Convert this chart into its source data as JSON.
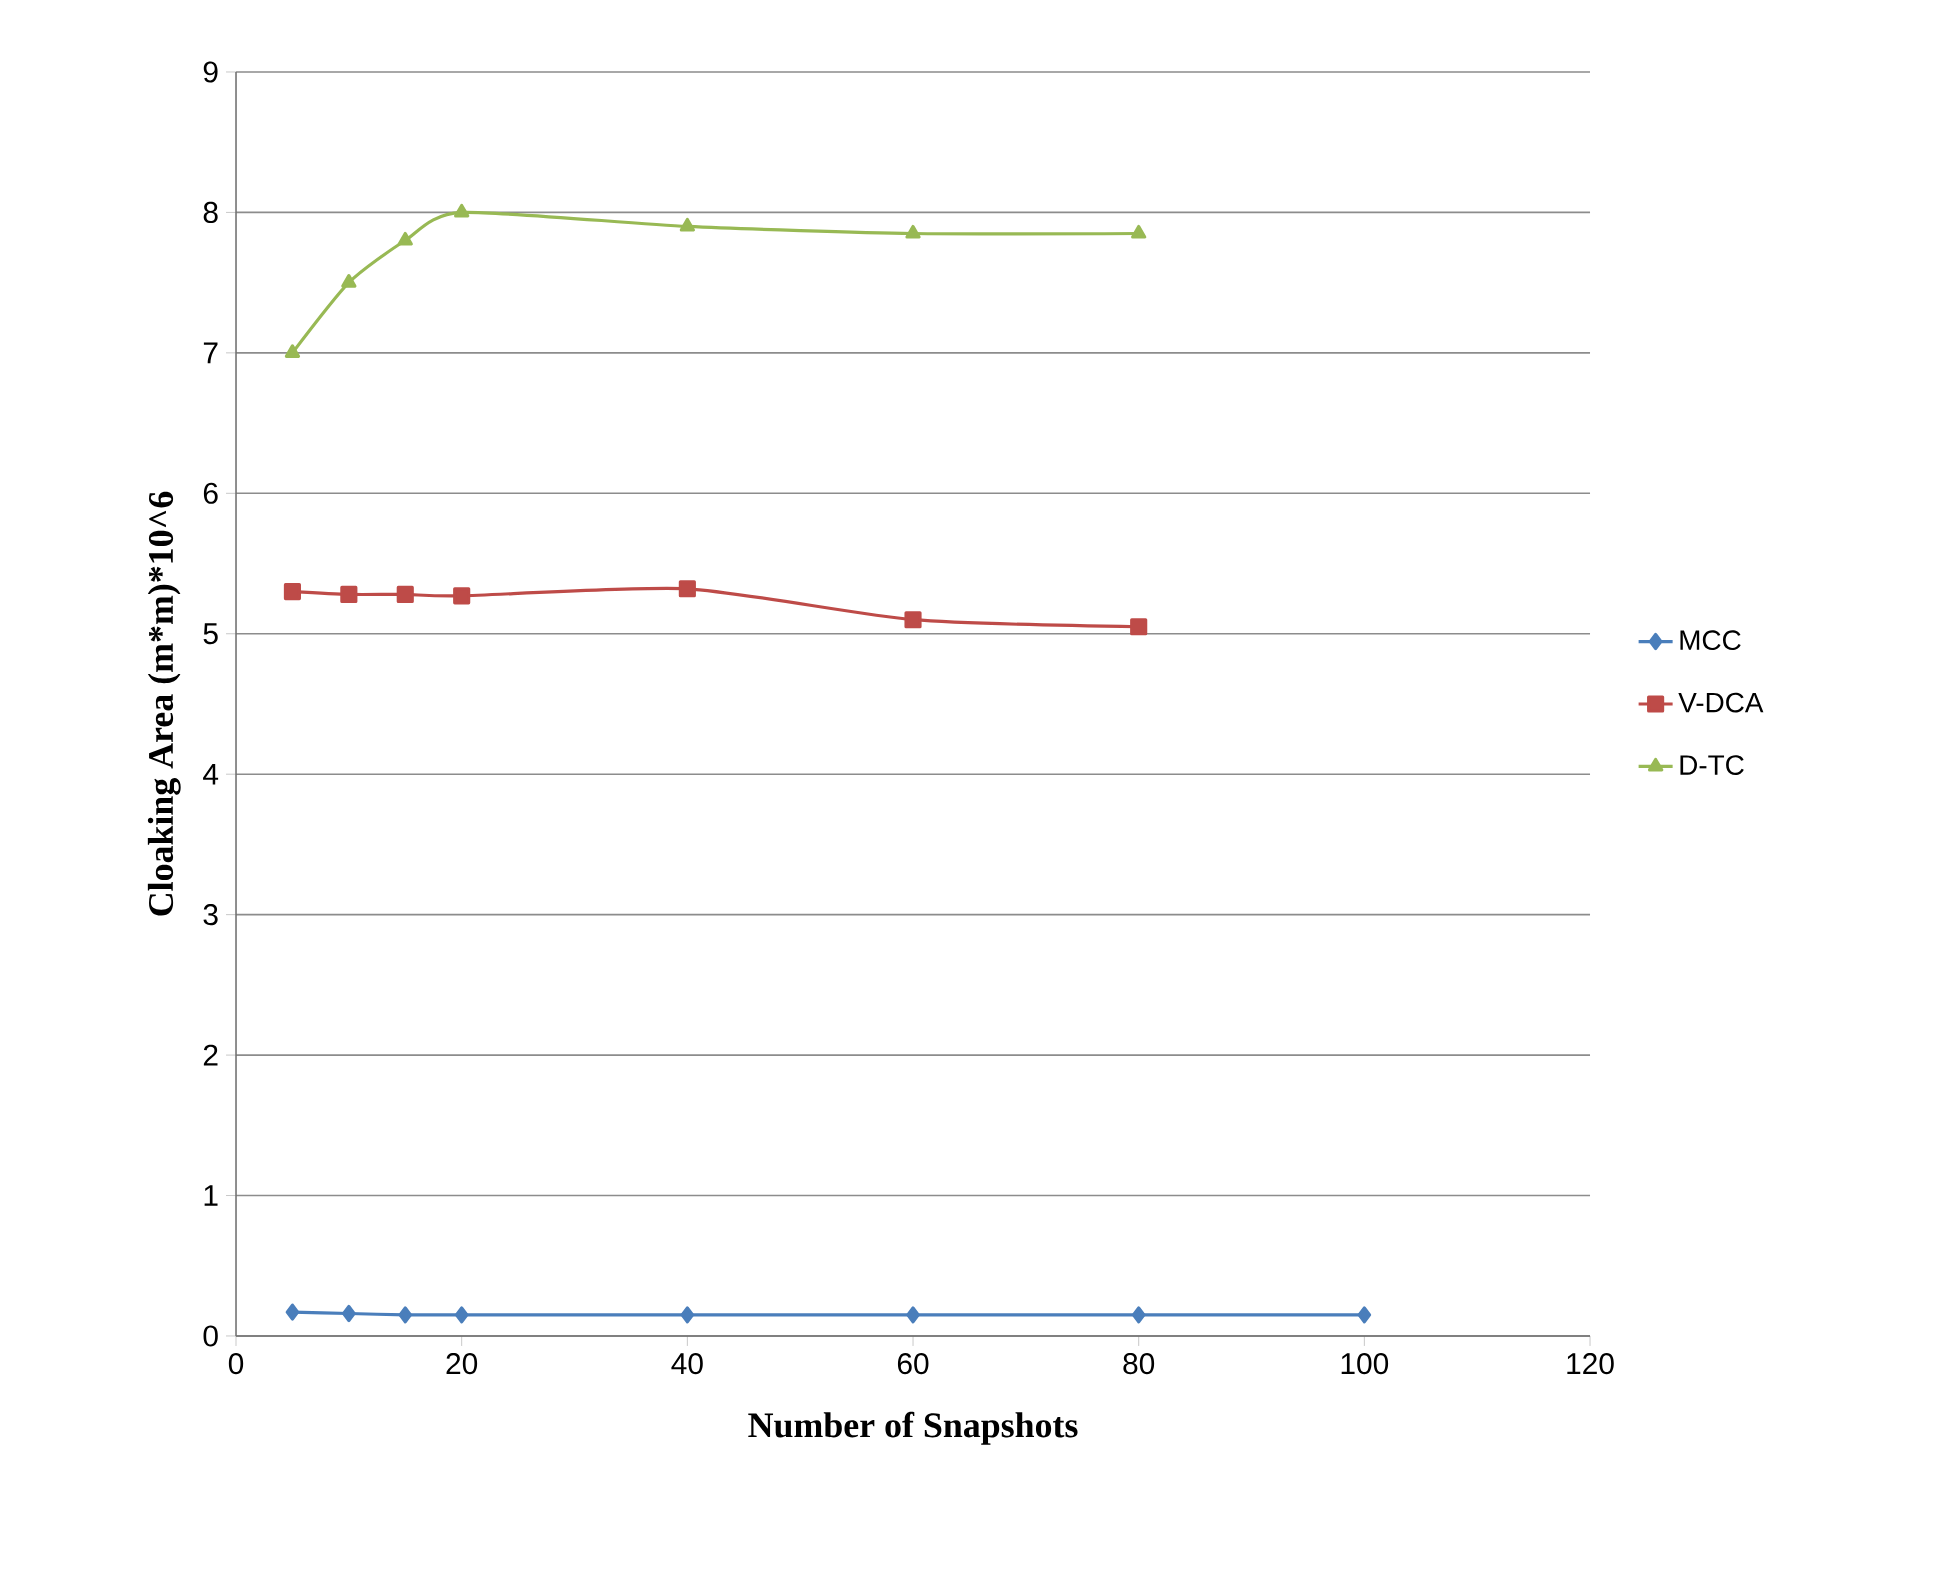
{
  "chart_data": {
    "type": "line",
    "xlabel": "Number of Snapshots",
    "ylabel": "Cloaking Area (m*m)*10^6",
    "xlim": [
      0,
      120
    ],
    "xticks": [
      0,
      20,
      40,
      60,
      80,
      100,
      120
    ],
    "ylim": [
      0,
      9
    ],
    "yticks": [
      0,
      1,
      2,
      3,
      4,
      5,
      6,
      7,
      8,
      9
    ],
    "grid": "y",
    "legend": "right",
    "line_style": "solid",
    "series": [
      {
        "name": "MCC",
        "color": "#4a7ebb",
        "marker": "diamond",
        "x": [
          5,
          10,
          15,
          20,
          40,
          60,
          80,
          100
        ],
        "values": [
          0.17,
          0.16,
          0.15,
          0.15,
          0.15,
          0.15,
          0.15,
          0.15
        ]
      },
      {
        "name": "V-DCA",
        "color": "#be4b48",
        "marker": "square",
        "x": [
          5,
          10,
          15,
          20,
          40,
          60,
          80
        ],
        "values": [
          5.3,
          5.28,
          5.28,
          5.27,
          5.32,
          5.1,
          5.05
        ]
      },
      {
        "name": "D-TC",
        "color": "#98b954",
        "marker": "triangle",
        "x": [
          5,
          10,
          15,
          20,
          40,
          60,
          80
        ],
        "values": [
          7.0,
          7.5,
          7.8,
          8.0,
          7.9,
          7.85,
          7.85
        ]
      }
    ]
  }
}
